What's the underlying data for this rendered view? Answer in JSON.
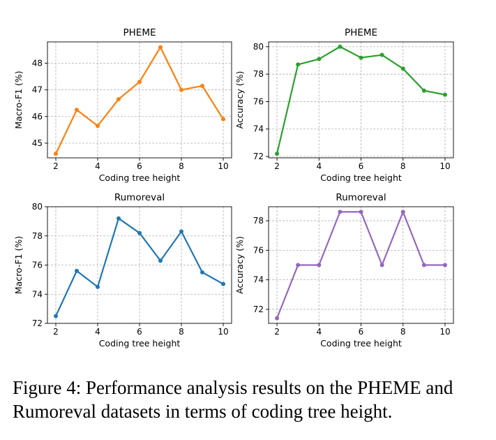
{
  "chart_data": [
    {
      "type": "line",
      "title": "PHEME",
      "xlabel": "Coding tree height",
      "ylabel": "Macro-F1 (%)",
      "color": "#ff7f0e",
      "x": [
        2,
        3,
        4,
        5,
        6,
        7,
        8,
        9,
        10
      ],
      "values": [
        44.6,
        46.25,
        45.65,
        46.65,
        47.3,
        48.6,
        47.0,
        47.15,
        45.9
      ],
      "xlim": [
        1.6,
        10.4
      ],
      "ylim": [
        44.45,
        48.8
      ],
      "xticks": [
        2,
        4,
        6,
        8,
        10
      ],
      "yticks": [
        45,
        46,
        47,
        48
      ],
      "grid": true
    },
    {
      "type": "line",
      "title": "PHEME",
      "xlabel": "Coding tree height",
      "ylabel": "Accuracy (%)",
      "color": "#2ca02c",
      "x": [
        2,
        3,
        4,
        5,
        6,
        7,
        8,
        9,
        10
      ],
      "values": [
        72.2,
        78.7,
        79.1,
        80.0,
        79.2,
        79.4,
        78.4,
        76.8,
        76.5
      ],
      "xlim": [
        1.6,
        10.4
      ],
      "ylim": [
        71.9,
        80.35
      ],
      "xticks": [
        2,
        4,
        6,
        8,
        10
      ],
      "yticks": [
        72,
        74,
        76,
        78,
        80
      ],
      "grid": true
    },
    {
      "type": "line",
      "title": "Rumoreval",
      "xlabel": "Coding tree height",
      "ylabel": "Macro-F1 (%)",
      "color": "#1f77b4",
      "x": [
        2,
        3,
        4,
        5,
        6,
        7,
        8,
        9,
        10
      ],
      "values": [
        72.5,
        75.6,
        74.5,
        79.2,
        78.2,
        76.3,
        78.3,
        75.5,
        74.7
      ],
      "xlim": [
        1.6,
        10.4
      ],
      "ylim": [
        72.0,
        80.0
      ],
      "xticks": [
        2,
        4,
        6,
        8,
        10
      ],
      "yticks": [
        72,
        74,
        76,
        78,
        80
      ],
      "grid": true
    },
    {
      "type": "line",
      "title": "Rumoreval",
      "xlabel": "Coding tree height",
      "ylabel": "Accuracy (%)",
      "color": "#9467bd",
      "x": [
        2,
        3,
        4,
        5,
        6,
        7,
        8,
        9,
        10
      ],
      "values": [
        71.4,
        75.0,
        75.0,
        78.6,
        78.6,
        75.0,
        78.6,
        75.0,
        75.0
      ],
      "xlim": [
        1.6,
        10.4
      ],
      "ylim": [
        71.05,
        78.95
      ],
      "xticks": [
        2,
        4,
        6,
        8,
        10
      ],
      "yticks": [
        72,
        74,
        76,
        78
      ],
      "grid": true
    }
  ],
  "caption": "Figure 4: Performance analysis results on the PHEME and Rumoreval datasets in terms of coding tree height."
}
